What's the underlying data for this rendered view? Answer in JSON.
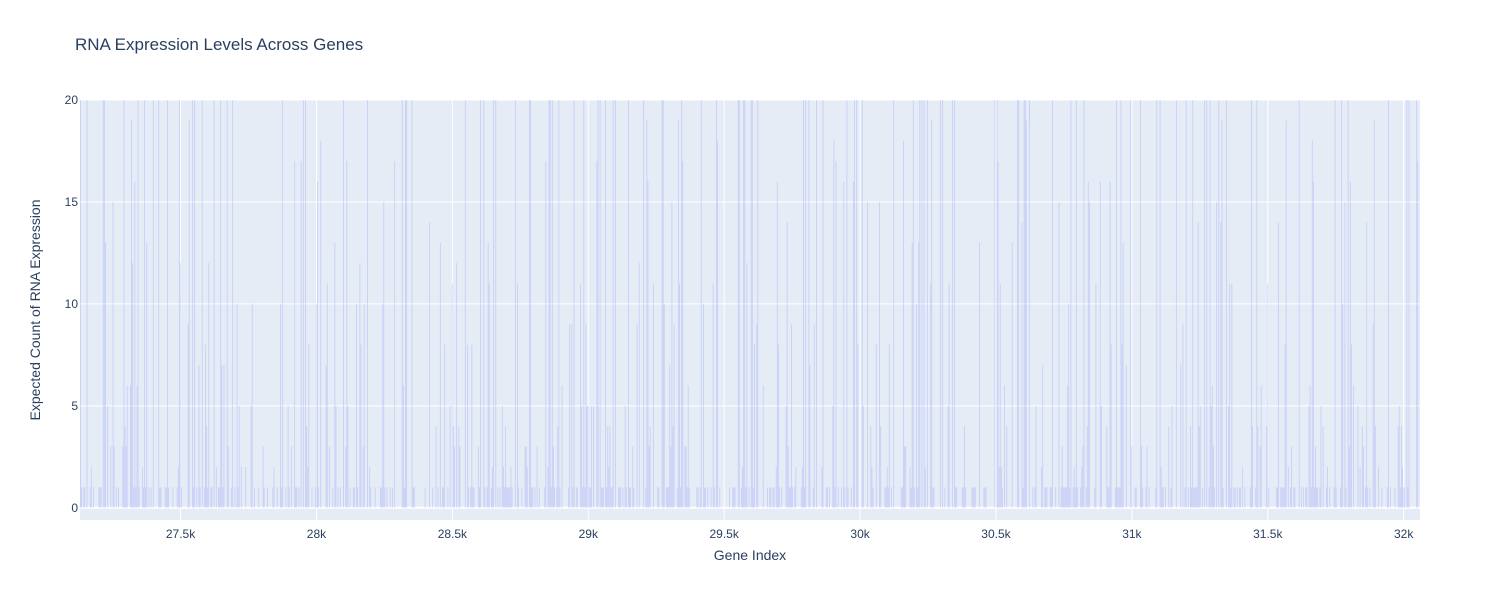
{
  "chart_data": {
    "type": "bar",
    "title": "RNA Expression Levels Across Genes",
    "xlabel": "Gene Index",
    "ylabel": "Expected Count of RNA Expression",
    "xlim": [
      27130,
      32060
    ],
    "ylim": [
      -0.6,
      20
    ],
    "x_ticks": [
      27500,
      28000,
      28500,
      29000,
      29500,
      30000,
      30500,
      31000,
      31500,
      32000
    ],
    "x_tick_labels": [
      "27.5k",
      "28k",
      "28.5k",
      "29k",
      "29.5k",
      "30k",
      "30.5k",
      "31k",
      "31.5k",
      "32k"
    ],
    "y_ticks": [
      0,
      5,
      10,
      15,
      20
    ],
    "y_tick_labels": [
      "0",
      "5",
      "10",
      "15",
      "20"
    ],
    "grid": true,
    "legend": "none",
    "bar_color": "#636efa",
    "plot_bgcolor": "#e5ecf6",
    "series": [
      {
        "x_start": 27130,
        "x_end": 32060,
        "values_note_omitted": true
      }
    ]
  }
}
